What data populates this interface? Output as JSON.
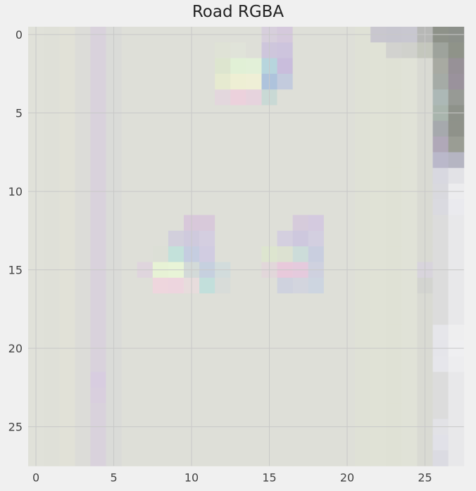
{
  "chart_data": {
    "type": "heatmap",
    "title": "Road RGBA",
    "rows": 28,
    "cols": 28,
    "grid": true,
    "x_ticks": [
      0,
      5,
      10,
      15,
      20,
      25
    ],
    "y_ticks": [
      0,
      5,
      10,
      15,
      20,
      25
    ],
    "base_color": "#dedfd8",
    "colors": {
      "background": "#f0f0f0",
      "grid": "#c8c8c8",
      "text": "#222222"
    },
    "columns": {
      "0": "#e0e1d9",
      "1": "#dfe0d8",
      "2": "#e1e1d7",
      "3": "#dcdcd8",
      "4": "#d9d2dc",
      "5": "#dadbd8",
      "21": "#dfe1d6",
      "22": "#e0e2d6",
      "23": "#dfe1d5",
      "24": "#e0e2d7",
      "25": "#d9dad3",
      "26": "#dcdcdc",
      "27": "#e8e8ea"
    },
    "cells": [
      {
        "r": 0,
        "c": 22,
        "color": "#c9c7cf"
      },
      {
        "r": 0,
        "c": 23,
        "color": "#c7c6cf"
      },
      {
        "r": 0,
        "c": 24,
        "color": "#c8c7d0"
      },
      {
        "r": 0,
        "c": 25,
        "color": "#b7b8b6"
      },
      {
        "r": 0,
        "c": 26,
        "color": "#8e9289"
      },
      {
        "r": 0,
        "c": 27,
        "color": "#8c908a"
      },
      {
        "r": 1,
        "c": 23,
        "color": "#d2d2cf"
      },
      {
        "r": 1,
        "c": 24,
        "color": "#d0d1cc"
      },
      {
        "r": 1,
        "c": 25,
        "color": "#c4c7bd"
      },
      {
        "r": 1,
        "c": 26,
        "color": "#9ea39c"
      },
      {
        "r": 1,
        "c": 27,
        "color": "#8f9389"
      },
      {
        "r": 2,
        "c": 26,
        "color": "#a8aaa2"
      },
      {
        "r": 2,
        "c": 27,
        "color": "#979197a0"
      },
      {
        "r": 3,
        "c": 26,
        "color": "#a5aba6"
      },
      {
        "r": 3,
        "c": 27,
        "color": "#9a929c"
      },
      {
        "r": 4,
        "c": 26,
        "color": "#acb8b6"
      },
      {
        "r": 4,
        "c": 27,
        "color": "#979a95"
      },
      {
        "r": 5,
        "c": 26,
        "color": "#a9b5ad"
      },
      {
        "r": 5,
        "c": 27,
        "color": "#8e928a"
      },
      {
        "r": 6,
        "c": 26,
        "color": "#a6a9ad"
      },
      {
        "r": 6,
        "c": 27,
        "color": "#8f928a"
      },
      {
        "r": 7,
        "c": 26,
        "color": "#b0a8b8"
      },
      {
        "r": 7,
        "c": 27,
        "color": "#9a9d94"
      },
      {
        "r": 8,
        "c": 26,
        "color": "#bab8ca"
      },
      {
        "r": 8,
        "c": 27,
        "color": "#b5b5c2"
      },
      {
        "r": 0,
        "c": 15,
        "color": "#d7cfdc"
      },
      {
        "r": 0,
        "c": 16,
        "color": "#d5c9dc"
      },
      {
        "r": 1,
        "c": 12,
        "color": "#dfe2d6"
      },
      {
        "r": 1,
        "c": 13,
        "color": "#e0e3d9"
      },
      {
        "r": 1,
        "c": 15,
        "color": "#cec6dc"
      },
      {
        "r": 1,
        "c": 16,
        "color": "#cdc4dd"
      },
      {
        "r": 2,
        "c": 12,
        "color": "#dde5cf"
      },
      {
        "r": 2,
        "c": 13,
        "color": "#e1f0d6"
      },
      {
        "r": 2,
        "c": 14,
        "color": "#e2f0d8"
      },
      {
        "r": 2,
        "c": 15,
        "color": "#b7d5dd"
      },
      {
        "r": 2,
        "c": 16,
        "color": "#c9bddc"
      },
      {
        "r": 3,
        "c": 12,
        "color": "#e6ead0"
      },
      {
        "r": 3,
        "c": 13,
        "color": "#eeefd4"
      },
      {
        "r": 3,
        "c": 14,
        "color": "#efefd6"
      },
      {
        "r": 3,
        "c": 15,
        "color": "#aec3dc"
      },
      {
        "r": 3,
        "c": 16,
        "color": "#c3cbdd"
      },
      {
        "r": 4,
        "c": 12,
        "color": "#e3d7dd"
      },
      {
        "r": 4,
        "c": 13,
        "color": "#ecd1dc"
      },
      {
        "r": 4,
        "c": 14,
        "color": "#e6d3dd"
      },
      {
        "r": 4,
        "c": 15,
        "color": "#c9d9d5"
      },
      {
        "r": 12,
        "c": 10,
        "color": "#d8c8da"
      },
      {
        "r": 12,
        "c": 11,
        "color": "#d8c9da"
      },
      {
        "r": 12,
        "c": 17,
        "color": "#d6cbdb"
      },
      {
        "r": 12,
        "c": 18,
        "color": "#d4cadf"
      },
      {
        "r": 13,
        "c": 9,
        "color": "#d2cfdc"
      },
      {
        "r": 13,
        "c": 10,
        "color": "#cfcadd"
      },
      {
        "r": 13,
        "c": 11,
        "color": "#d4cee0"
      },
      {
        "r": 13,
        "c": 16,
        "color": "#d4cfdf"
      },
      {
        "r": 13,
        "c": 17,
        "color": "#cec8de"
      },
      {
        "r": 13,
        "c": 18,
        "color": "#d3cfe0"
      },
      {
        "r": 14,
        "c": 8,
        "color": "#dcdfd6"
      },
      {
        "r": 14,
        "c": 9,
        "color": "#c3e1da"
      },
      {
        "r": 14,
        "c": 10,
        "color": "#c5cde0"
      },
      {
        "r": 14,
        "c": 11,
        "color": "#d1cce1"
      },
      {
        "r": 14,
        "c": 15,
        "color": "#dde5cf"
      },
      {
        "r": 14,
        "c": 16,
        "color": "#dce1d1"
      },
      {
        "r": 14,
        "c": 17,
        "color": "#ccdcd9"
      },
      {
        "r": 14,
        "c": 18,
        "color": "#c9cedf"
      },
      {
        "r": 15,
        "c": 7,
        "color": "#dfd5dd"
      },
      {
        "r": 15,
        "c": 8,
        "color": "#e7f2d5"
      },
      {
        "r": 15,
        "c": 9,
        "color": "#e8f4d7"
      },
      {
        "r": 15,
        "c": 10,
        "color": "#d3dad8"
      },
      {
        "r": 15,
        "c": 11,
        "color": "#c6d0df"
      },
      {
        "r": 15,
        "c": 12,
        "color": "#d2dcdc"
      },
      {
        "r": 15,
        "c": 15,
        "color": "#e2d7da"
      },
      {
        "r": 15,
        "c": 16,
        "color": "#e8c9db"
      },
      {
        "r": 15,
        "c": 17,
        "color": "#e5cadd"
      },
      {
        "r": 15,
        "c": 18,
        "color": "#cfd1df"
      },
      {
        "r": 16,
        "c": 8,
        "color": "#eed6dd"
      },
      {
        "r": 16,
        "c": 9,
        "color": "#edd5de"
      },
      {
        "r": 16,
        "c": 10,
        "color": "#e7dcdc"
      },
      {
        "r": 16,
        "c": 11,
        "color": "#c2dfdb"
      },
      {
        "r": 16,
        "c": 12,
        "color": "#d8dcd9"
      },
      {
        "r": 16,
        "c": 16,
        "color": "#cfd2de"
      },
      {
        "r": 16,
        "c": 17,
        "color": "#d3d5de"
      },
      {
        "r": 16,
        "c": 18,
        "color": "#cdd5e0"
      },
      {
        "r": 9,
        "c": 26,
        "color": "#d8d8e0"
      },
      {
        "r": 9,
        "c": 27,
        "color": "#e2e2e6"
      },
      {
        "r": 10,
        "c": 26,
        "color": "#d9d9de"
      },
      {
        "r": 10,
        "c": 27,
        "color": "#ececee"
      },
      {
        "r": 11,
        "c": 26,
        "color": "#dadae0"
      },
      {
        "r": 11,
        "c": 27,
        "color": "#eaeaee"
      },
      {
        "r": 15,
        "c": 25,
        "color": "#d8d4dc"
      },
      {
        "r": 16,
        "c": 25,
        "color": "#d3d4d0"
      },
      {
        "r": 19,
        "c": 26,
        "color": "#e6e6ea"
      },
      {
        "r": 19,
        "c": 27,
        "color": "#eeeeef"
      },
      {
        "r": 20,
        "c": 26,
        "color": "#e5e5ea"
      },
      {
        "r": 20,
        "c": 27,
        "color": "#efeff1"
      },
      {
        "r": 21,
        "c": 26,
        "color": "#e6e6eb"
      },
      {
        "r": 21,
        "c": 27,
        "color": "#ededef"
      },
      {
        "r": 22,
        "c": 4,
        "color": "#d8cde0"
      },
      {
        "r": 23,
        "c": 4,
        "color": "#d9cfde"
      },
      {
        "r": 25,
        "c": 26,
        "color": "#e2e2e6"
      },
      {
        "r": 26,
        "c": 26,
        "color": "#e1e1e8"
      },
      {
        "r": 27,
        "c": 26,
        "color": "#dbdbe2"
      }
    ]
  }
}
